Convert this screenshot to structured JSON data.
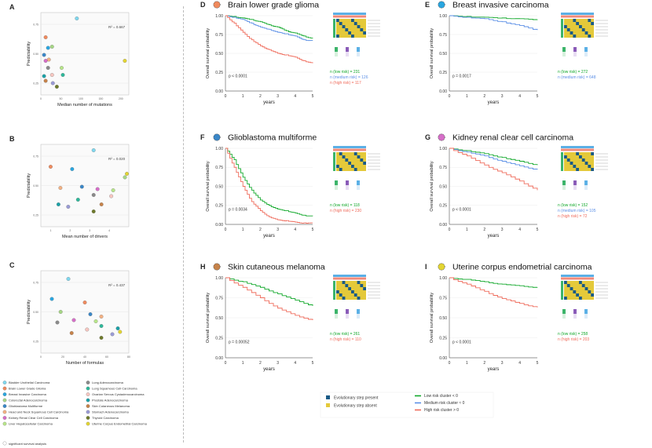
{
  "colors": {
    "low": "#11a82a",
    "medium": "#5b8fe6",
    "high": "#ef6b5b",
    "step_present": "#1a5a86",
    "step_absent": "#e4c93a",
    "green_pt": "#2eb89a"
  },
  "scatters": [
    {
      "letter": "A",
      "ylabel": "Predictability",
      "xlabel": "Median number of mutations",
      "r2": "R² = 0.667",
      "xlim": [
        0,
        220
      ],
      "ylim": [
        0.15,
        0.85
      ],
      "xticks": [
        "0",
        "50",
        "100",
        "150",
        "200"
      ],
      "yticks": [
        "0.25",
        "0.50",
        "0.75"
      ]
    },
    {
      "letter": "B",
      "ylabel": "Predictability",
      "xlabel": "Mean number of drivers",
      "r2": "R² = 0.020",
      "xlim": [
        0.5,
        5
      ],
      "ylim": [
        0.15,
        0.85
      ],
      "xticks": [
        "1",
        "2",
        "3",
        "4"
      ],
      "yticks": [
        "0.25",
        "0.50",
        "0.75"
      ]
    },
    {
      "letter": "C",
      "ylabel": "Predictability",
      "xlabel": "Number of formulas",
      "r2": "R² = 0.437",
      "xlim": [
        0,
        80
      ],
      "ylim": [
        0.15,
        0.85
      ],
      "xticks": [
        "0",
        "20",
        "40",
        "60",
        "80"
      ],
      "yticks": [
        "0.25",
        "0.50",
        "0.75"
      ]
    }
  ],
  "legend": {
    "col1": [
      {
        "label": "Bladder Urothelial Carcinoma",
        "color": "#7fd8ef"
      },
      {
        "label": "Brain Lower Grade Glioma",
        "color": "#f08a5d"
      },
      {
        "label": "Breast Invasive Carcinoma",
        "color": "#29a6e0"
      },
      {
        "label": "Colorectal Adenocarcinoma",
        "color": "#a6d785"
      },
      {
        "label": "Glioblastoma Multiforme",
        "color": "#3a87c8"
      },
      {
        "label": "Head and Neck Squamous Cell Carcinoma",
        "color": "#f3b183"
      },
      {
        "label": "Kidney Renal Clear Cell Carcinoma",
        "color": "#d66ec8"
      },
      {
        "label": "Liver Hepatocellular Carcinoma",
        "color": "#b8e68a"
      }
    ],
    "col2": [
      {
        "label": "Lung Adenocarcinoma",
        "color": "#8a8a8a"
      },
      {
        "label": "Lung Squamous Cell Carcinoma",
        "color": "#2eb89a"
      },
      {
        "label": "Ovarian Serous Cystadenocarcinoma",
        "color": "#f7c7c1"
      },
      {
        "label": "Prostate Adenocarcinoma",
        "color": "#1aa1a7"
      },
      {
        "label": "Skin Cutaneous Melanoma",
        "color": "#c7834a"
      },
      {
        "label": "Stomach Adenocarcinoma",
        "color": "#9a9bd6"
      },
      {
        "label": "Thyroid Carcinoma",
        "color": "#6e7a2b"
      },
      {
        "label": "Uterine Corpus Endometrial Carcinoma",
        "color": "#e3d531"
      }
    ],
    "footnote": "significant survival analysis"
  },
  "chart_data": [
    {
      "type": "line",
      "letter": "D",
      "title": "Brain lower grade glioma",
      "icon_color": "#f08a5d",
      "xlabel": "years",
      "ylabel": "Overall survival probability",
      "xlim": [
        0,
        5
      ],
      "ylim": [
        0,
        1
      ],
      "xticks": [
        "0",
        "1",
        "2",
        "3",
        "4",
        "5"
      ],
      "yticks": [
        "0.00",
        "0.25",
        "0.50",
        "0.75",
        "1.00"
      ],
      "pvalue": "p < 0.0001",
      "series": [
        {
          "name": "low",
          "x": [
            0,
            0.5,
            1,
            1.5,
            2,
            2.5,
            3,
            3.5,
            4,
            4.5,
            5
          ],
          "y": [
            1,
            0.99,
            0.97,
            0.95,
            0.92,
            0.88,
            0.85,
            0.8,
            0.77,
            0.73,
            0.7
          ]
        },
        {
          "name": "medium",
          "x": [
            0,
            0.5,
            1,
            1.5,
            2,
            2.5,
            3,
            3.5,
            4,
            4.5,
            5
          ],
          "y": [
            1,
            0.98,
            0.95,
            0.9,
            0.85,
            0.82,
            0.78,
            0.76,
            0.73,
            0.68,
            0.67
          ]
        },
        {
          "name": "high",
          "x": [
            0,
            0.5,
            1,
            1.5,
            2,
            2.5,
            3,
            3.5,
            4,
            4.5,
            5
          ],
          "y": [
            1,
            0.9,
            0.78,
            0.68,
            0.6,
            0.55,
            0.5,
            0.48,
            0.45,
            0.4,
            0.37
          ]
        }
      ],
      "ns": [
        {
          "name": "low",
          "text": "n (low risk) = 231"
        },
        {
          "name": "medium",
          "text": "n (medium risk) = 126"
        },
        {
          "name": "high",
          "text": "n (high risk) = 117"
        }
      ]
    },
    {
      "type": "line",
      "letter": "E",
      "title": "Breast invasive carcinoma",
      "icon_color": "#29a6e0",
      "xlabel": "years",
      "ylabel": "Overall survival probability",
      "xlim": [
        0,
        5
      ],
      "ylim": [
        0,
        1
      ],
      "xticks": [
        "0",
        "1",
        "2",
        "3",
        "4",
        "5"
      ],
      "yticks": [
        "0.00",
        "0.25",
        "0.50",
        "0.75",
        "1.00"
      ],
      "pvalue": "p = 0.0017",
      "series": [
        {
          "name": "low",
          "x": [
            0,
            1,
            2,
            3,
            4,
            5
          ],
          "y": [
            1,
            0.99,
            0.98,
            0.97,
            0.96,
            0.95
          ]
        },
        {
          "name": "medium",
          "x": [
            0,
            1,
            2,
            3,
            4,
            5
          ],
          "y": [
            1,
            0.98,
            0.96,
            0.92,
            0.87,
            0.81
          ]
        }
      ],
      "ns": [
        {
          "name": "low",
          "text": "n (low risk) = 272"
        },
        {
          "name": "medium",
          "text": "n (medium risk) = 648"
        }
      ]
    },
    {
      "type": "line",
      "letter": "F",
      "title": "Glioblastoma multiforme",
      "icon_color": "#3a87c8",
      "xlabel": "years",
      "ylabel": "Overall survival probability",
      "xlim": [
        0,
        5
      ],
      "ylim": [
        0,
        1
      ],
      "xticks": [
        "0",
        "1",
        "2",
        "3",
        "4",
        "5"
      ],
      "yticks": [
        "0.00",
        "0.25",
        "0.50",
        "0.75",
        "1.00"
      ],
      "pvalue": "p = 0.0034",
      "series": [
        {
          "name": "low",
          "x": [
            0,
            0.5,
            1,
            1.5,
            2,
            2.5,
            3,
            3.5,
            4,
            4.5,
            5
          ],
          "y": [
            1,
            0.85,
            0.62,
            0.45,
            0.32,
            0.25,
            0.2,
            0.18,
            0.15,
            0.12,
            0.11
          ]
        },
        {
          "name": "high",
          "x": [
            0,
            0.5,
            1,
            1.5,
            2,
            2.5,
            3,
            3.5,
            4,
            4.5,
            5
          ],
          "y": [
            1,
            0.75,
            0.5,
            0.3,
            0.18,
            0.1,
            0.06,
            0.05,
            0.03,
            0.02,
            0.02
          ]
        }
      ],
      "ns": [
        {
          "name": "low",
          "text": "n (low risk) = 118"
        },
        {
          "name": "high",
          "text": "n (high risk) = 230"
        }
      ]
    },
    {
      "type": "line",
      "letter": "G",
      "title": "Kidney renal clear cell carcinoma",
      "icon_color": "#d66ec8",
      "xlabel": "years",
      "ylabel": "Overall survival probability",
      "xlim": [
        0,
        5
      ],
      "ylim": [
        0,
        1
      ],
      "xticks": [
        "0",
        "1",
        "2",
        "3",
        "4",
        "5"
      ],
      "yticks": [
        "0.00",
        "0.25",
        "0.50",
        "0.75",
        "1.00"
      ],
      "pvalue": "p < 0.0001",
      "series": [
        {
          "name": "low",
          "x": [
            0,
            1,
            2,
            3,
            4,
            5
          ],
          "y": [
            1,
            0.97,
            0.93,
            0.88,
            0.83,
            0.78
          ]
        },
        {
          "name": "medium",
          "x": [
            0,
            1,
            2,
            3,
            4,
            5
          ],
          "y": [
            1,
            0.95,
            0.9,
            0.83,
            0.77,
            0.72
          ]
        },
        {
          "name": "high",
          "x": [
            0,
            1,
            2,
            3,
            4,
            5
          ],
          "y": [
            1,
            0.9,
            0.78,
            0.68,
            0.57,
            0.45
          ]
        }
      ],
      "ns": [
        {
          "name": "low",
          "text": "n (low risk) = 152"
        },
        {
          "name": "medium",
          "text": "n (medium risk) = 105"
        },
        {
          "name": "high",
          "text": "n (high risk) = 72"
        }
      ]
    },
    {
      "type": "line",
      "letter": "H",
      "title": "Skin cutaneous melanoma",
      "icon_color": "#c7834a",
      "xlabel": "years",
      "ylabel": "Overall survival probability",
      "xlim": [
        0,
        5
      ],
      "ylim": [
        0,
        1
      ],
      "xticks": [
        "0",
        "1",
        "2",
        "3",
        "4",
        "5"
      ],
      "yticks": [
        "0.00",
        "0.25",
        "0.50",
        "0.75",
        "1.00"
      ],
      "pvalue": "p = 0.00052",
      "series": [
        {
          "name": "low",
          "x": [
            0,
            1,
            2,
            3,
            4,
            5
          ],
          "y": [
            1,
            0.95,
            0.88,
            0.8,
            0.72,
            0.65
          ]
        },
        {
          "name": "high",
          "x": [
            0,
            1,
            2,
            3,
            4,
            5
          ],
          "y": [
            1,
            0.88,
            0.75,
            0.62,
            0.53,
            0.47
          ]
        }
      ],
      "ns": [
        {
          "name": "low",
          "text": "n (low risk) = 261"
        },
        {
          "name": "high",
          "text": "n (high risk) = 110"
        }
      ]
    },
    {
      "type": "line",
      "letter": "I",
      "title": "Uterine corpus endometrial carcinoma",
      "icon_color": "#e3d531",
      "xlabel": "years",
      "ylabel": "Overall survival probability",
      "xlim": [
        0,
        5
      ],
      "ylim": [
        0,
        1
      ],
      "xticks": [
        "0",
        "1",
        "2",
        "3",
        "4",
        "5"
      ],
      "yticks": [
        "0.00",
        "0.25",
        "0.50",
        "0.75",
        "1.00"
      ],
      "pvalue": "p < 0.0001",
      "series": [
        {
          "name": "low",
          "x": [
            0,
            1,
            2,
            3,
            4,
            5
          ],
          "y": [
            1,
            0.98,
            0.95,
            0.92,
            0.9,
            0.88
          ]
        },
        {
          "name": "high",
          "x": [
            0,
            1,
            2,
            3,
            4,
            5
          ],
          "y": [
            1,
            0.92,
            0.83,
            0.74,
            0.68,
            0.63
          ]
        }
      ],
      "ns": [
        {
          "name": "low",
          "text": "n (low risk) = 258"
        },
        {
          "name": "high",
          "text": "n (high risk) = 203"
        }
      ]
    }
  ],
  "bottom_legend": {
    "steps": [
      {
        "label": "Evolutionary step present",
        "color": "#1a5a86"
      },
      {
        "label": "Evolutionary step absent",
        "color": "#e4c93a"
      }
    ],
    "clusters": [
      {
        "label": "Low risk cluster < 0",
        "color": "#11a82a"
      },
      {
        "label": "Medium risk cluster ≈ 0",
        "color": "#5b8fe6"
      },
      {
        "label": "High risk cluster > 0",
        "color": "#ef6b5b"
      }
    ]
  }
}
